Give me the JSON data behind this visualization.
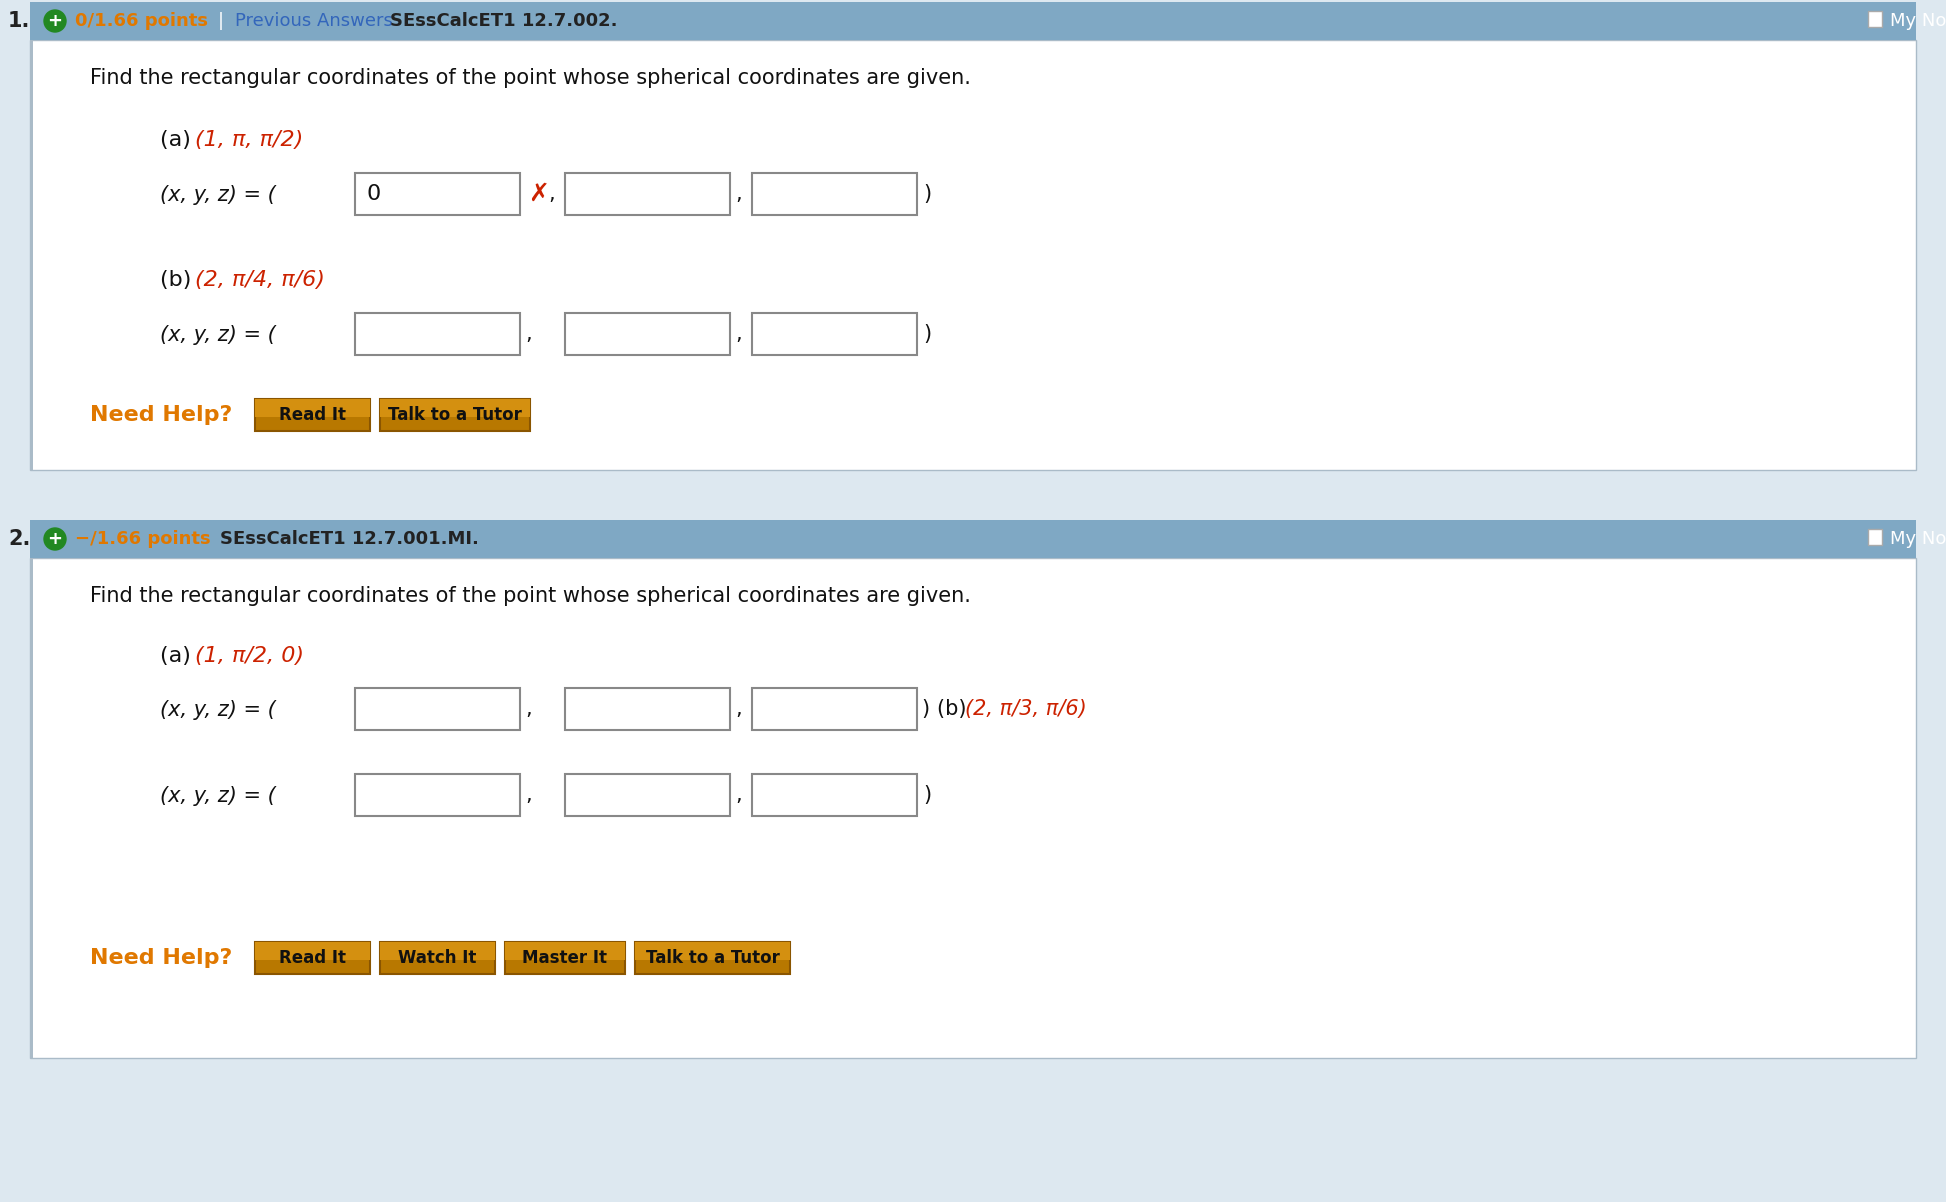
{
  "bg_color": "#dde8f0",
  "white": "#ffffff",
  "header_bg": "#7fa8c4",
  "border_color": "#aabbc8",
  "orange": "#e07800",
  "red": "#cc2200",
  "blue_link": "#3366bb",
  "dark_text": "#111111",
  "green_icon": "#228822",
  "gray_text": "#333333",
  "q1": {
    "number": "1.",
    "points": "0/1.66 points",
    "sep": "|",
    "prev": "Previous Answers",
    "course": "SEssCalcET1 12.7.002.",
    "my_notes": "My Notes",
    "instruction": "Find the rectangular coordinates of the point whose spherical coordinates are given.",
    "part_a_black": "(a) ",
    "part_a_red": "(1, π, π/2)",
    "part_b_black": "(b) ",
    "part_b_red": "(2, π/4, π/6)",
    "xyz": "(x, y, z) = ( ",
    "ans1": "0",
    "btn1": "Read It",
    "btn2": "Talk to a Tutor",
    "need_help": "Need Help?"
  },
  "q2": {
    "number": "2.",
    "points": "−/1.66 points",
    "course": "SEssCalcET1 12.7.001.MI.",
    "my_notes": "My Notes",
    "instruction": "Find the rectangular coordinates of the point whose spherical coordinates are given.",
    "part_a_black": "(a) ",
    "part_a_red": "(1, π/2, 0)",
    "part_b_black": "(b) ",
    "part_b_red": "(2, π/3, π/6)",
    "xyz": "(x, y, z) = ( ",
    "btn1": "Read It",
    "btn2": "Watch It",
    "btn3": "Master It",
    "btn4": "Talk to a Tutor",
    "need_help": "Need Help?"
  }
}
